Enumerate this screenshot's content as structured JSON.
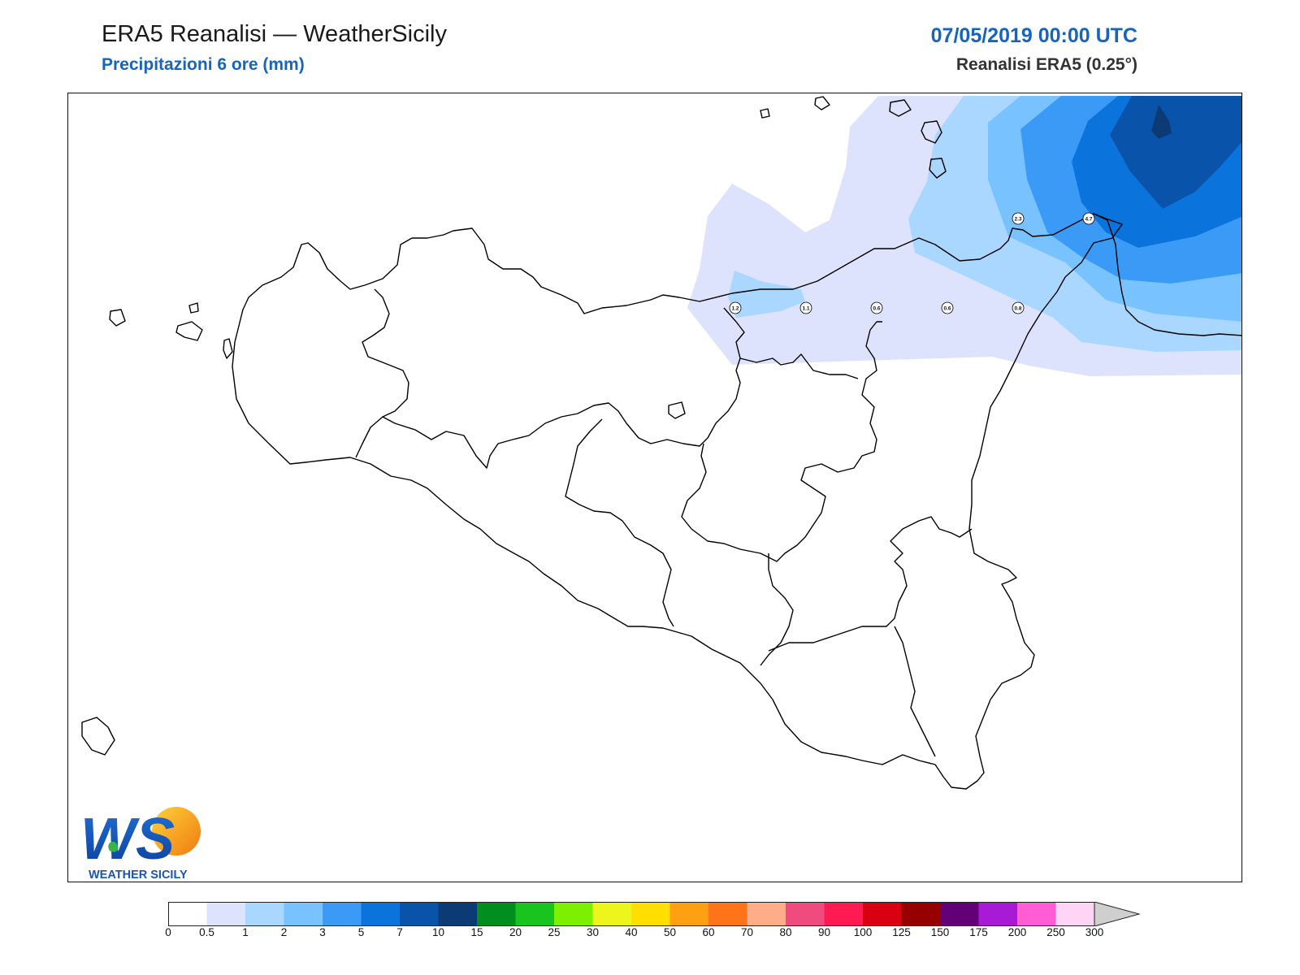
{
  "header": {
    "title": "ERA5 Reanalisi — WeatherSicily",
    "subtitle": "Precipitazioni 6 ore (mm)",
    "datetime": "07/05/2019 00:00 UTC",
    "source": "Reanalisi ERA5 (0.25°)"
  },
  "map": {
    "region": "Sicilia",
    "variable": "6-hour precipitation",
    "units": "mm",
    "point_values": [
      "1.2",
      "1.1",
      "0.6",
      "0.6",
      "0.8",
      "2.3",
      "4.7"
    ]
  },
  "colorbar": {
    "labels": [
      "0",
      "0.5",
      "1",
      "2",
      "3",
      "5",
      "7",
      "10",
      "15",
      "20",
      "25",
      "30",
      "40",
      "50",
      "60",
      "70",
      "80",
      "90",
      "100",
      "125",
      "150",
      "175",
      "200",
      "250",
      "300"
    ],
    "colors": [
      "#ffffff",
      "#dde3fd",
      "#aad7ff",
      "#78c2ff",
      "#3a9af5",
      "#0a74dc",
      "#0a53aa",
      "#0b3a74",
      "#008f1e",
      "#18c41d",
      "#7cf000",
      "#eef51c",
      "#ffde00",
      "#ff9f11",
      "#ff7418",
      "#ffac88",
      "#f04b7e",
      "#ff1a52",
      "#d90012",
      "#960000",
      "#630078",
      "#a91ad7",
      "#ff5cd6",
      "#ffd4f5"
    ],
    "extend_color": "#cfcfcf"
  },
  "logo": {
    "text": "WS",
    "caption": "WEATHER SICILY"
  }
}
